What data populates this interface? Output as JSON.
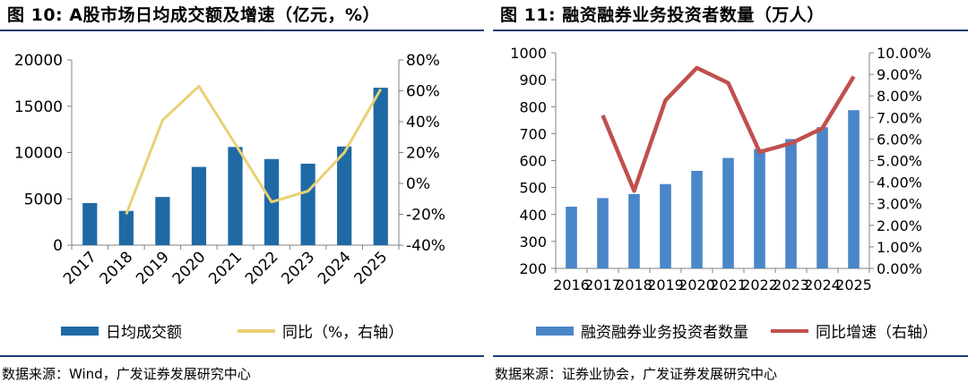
{
  "colors": {
    "left_bar": "#1f6aa5",
    "left_line": "#e8d174",
    "right_bar": "#4a86c8",
    "right_line": "#c0504d",
    "rule": "#1f3b75",
    "axis": "#808080"
  },
  "left": {
    "title": "图 10: A股市场日均成交额及增速（亿元，%）",
    "source": "数据来源：Wind，广发证券发展研究中心",
    "legend": {
      "bar_label": "日均成交额",
      "line_label": "同比（%，右轴）"
    }
  },
  "right": {
    "title": "图 11: 融资融券业务投资者数量（万人）",
    "source": "数据来源：证券业协会，广发证券发展研究中心",
    "legend": {
      "bar_label": "融资融券业务投资者数量",
      "line_label": "同比增速（右轴）"
    }
  },
  "chart_data": [
    {
      "type": "bar",
      "categories": [
        "2017",
        "2018",
        "2019",
        "2020",
        "2021",
        "2022",
        "2023",
        "2024",
        "2025"
      ],
      "series": [
        {
          "name": "日均成交额",
          "type": "bar",
          "axis": "left",
          "values": [
            4550,
            3700,
            5200,
            8450,
            10600,
            9300,
            8800,
            10650,
            17000
          ]
        },
        {
          "name": "同比（%，右轴）",
          "type": "line",
          "axis": "right",
          "values": [
            null,
            -20,
            41,
            63,
            null,
            -12,
            -5,
            20,
            61
          ]
        }
      ],
      "y_left": {
        "min": 0,
        "max": 20000,
        "ticks": [
          "0",
          "5000",
          "10000",
          "15000",
          "20000"
        ]
      },
      "y_right": {
        "min": -40,
        "max": 80,
        "ticks": [
          "-40%",
          "-20%",
          "0%",
          "20%",
          "40%",
          "60%",
          "80%"
        ]
      },
      "grid": false,
      "legend_position": "bottom"
    },
    {
      "type": "bar",
      "categories": [
        "2016",
        "2017",
        "2018",
        "2019",
        "2020",
        "2021",
        "2022",
        "2023",
        "2024",
        "2025"
      ],
      "series": [
        {
          "name": "融资融券业务投资者数量",
          "type": "bar",
          "axis": "left",
          "values": [
            429,
            461,
            476,
            513,
            562,
            610,
            643,
            680,
            724,
            787
          ]
        },
        {
          "name": "同比增速（右轴）",
          "type": "line",
          "axis": "right",
          "values": [
            null,
            7.1,
            3.6,
            7.8,
            9.3,
            8.6,
            5.4,
            5.8,
            6.5,
            8.9
          ]
        }
      ],
      "y_left": {
        "min": 200,
        "max": 1000,
        "ticks": [
          "200",
          "300",
          "400",
          "500",
          "600",
          "700",
          "800",
          "900",
          "1000"
        ]
      },
      "y_right": {
        "min": 0,
        "max": 10,
        "ticks": [
          "0.00%",
          "1.00%",
          "2.00%",
          "3.00%",
          "4.00%",
          "5.00%",
          "6.00%",
          "7.00%",
          "8.00%",
          "9.00%",
          "10.00%"
        ]
      },
      "grid": false,
      "legend_position": "bottom"
    }
  ]
}
